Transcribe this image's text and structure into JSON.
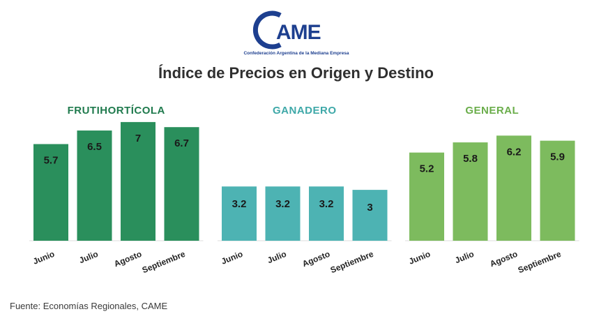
{
  "logo": {
    "name": "CAME",
    "subtitle": "Confederación Argentina de la Mediana Empresa",
    "color": "#1d3f8f"
  },
  "title": "Índice de Precios en Origen y Destino",
  "chart_data": [
    {
      "type": "bar",
      "title": "FRUTIHORTÍCOLA",
      "color": "#2a8f5c",
      "title_color": "#1f7a4d",
      "categories": [
        "Junio",
        "Julio",
        "Agosto",
        "Septiembre"
      ],
      "values": [
        5.7,
        6.5,
        7,
        6.7
      ],
      "value_labels": [
        "5.7",
        "6.5",
        "7",
        "6.7"
      ]
    },
    {
      "type": "bar",
      "title": "GANADERO",
      "color": "#4db3b3",
      "title_color": "#3ea8a8",
      "categories": [
        "Junio",
        "Julio",
        "Agosto",
        "Septiembre"
      ],
      "values": [
        3.2,
        3.2,
        3.2,
        3
      ],
      "value_labels": [
        "3.2",
        "3.2",
        "3.2",
        "3"
      ]
    },
    {
      "type": "bar",
      "title": "GENERAL",
      "color": "#7dbb5e",
      "title_color": "#6aad4a",
      "categories": [
        "Junio",
        "Julio",
        "Agosto",
        "Septiembre"
      ],
      "values": [
        5.2,
        5.8,
        6.2,
        5.9
      ],
      "value_labels": [
        "5.2",
        "5.8",
        "6.2",
        "5.9"
      ]
    }
  ],
  "source": "Fuente: Economías Regionales, CAME"
}
